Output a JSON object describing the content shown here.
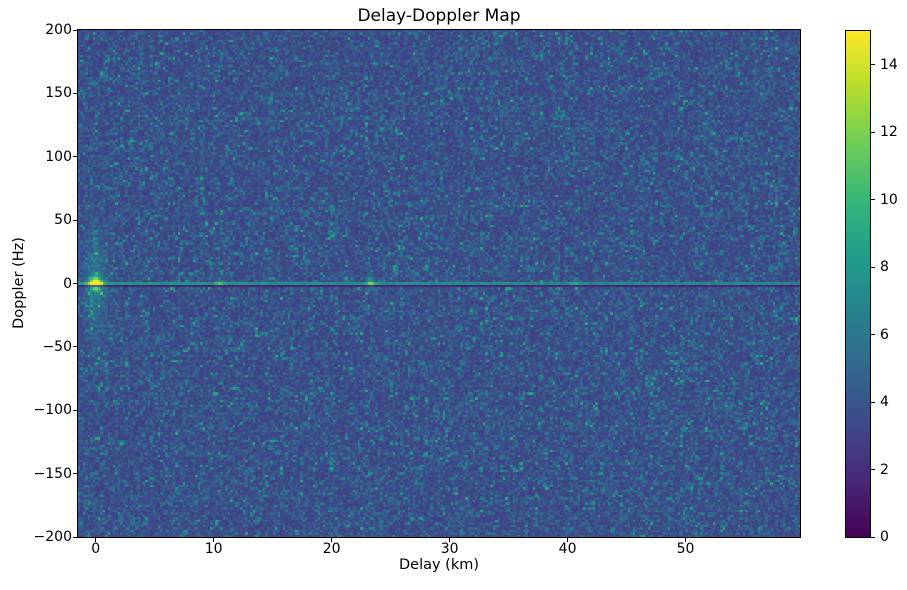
{
  "chart_data": {
    "type": "heatmap",
    "title": "Delay-Doppler Map",
    "xlabel": "Delay (km)",
    "ylabel": "Doppler (Hz)",
    "xlim": [
      -1.5,
      59.7
    ],
    "ylim": [
      -200,
      200
    ],
    "xticks": [
      0,
      10,
      20,
      30,
      40,
      50
    ],
    "xtick_labels": [
      "0",
      "10",
      "20",
      "30",
      "40",
      "50"
    ],
    "yticks": [
      200,
      150,
      100,
      50,
      0,
      -50,
      -100,
      -150,
      -200
    ],
    "ytick_labels": [
      "200",
      "150",
      "100",
      "50",
      "0",
      "−50",
      "−100",
      "−150",
      "−200"
    ],
    "grid_on": false,
    "colormap": "viridis",
    "colormap_stops": [
      "#440154",
      "#482878",
      "#3e4989",
      "#31688e",
      "#26828e",
      "#1f9e89",
      "#35b779",
      "#6ece58",
      "#b5de2b",
      "#fde725"
    ],
    "colorbar": {
      "vmin": 0,
      "vmax": 15,
      "ticks": [
        0,
        2,
        4,
        6,
        8,
        10,
        12,
        14
      ],
      "tick_labels": [
        "0",
        "2",
        "4",
        "6",
        "8",
        "10",
        "12",
        "14"
      ],
      "position": "right"
    },
    "grid_bins": {
      "delay": 289,
      "doppler": 203
    },
    "background_noise": {
      "description": "speckle noise over full map",
      "floor": 2.9,
      "exp_scale": 1.15,
      "clamp": 9.0,
      "mean": 4.05,
      "seed": 1337
    },
    "zero_doppler_ridge": {
      "doppler_hz": 0,
      "value": 7.9,
      "taper_per_km": 0.015,
      "noise": 0.55,
      "dark_line": {
        "offset_rows": 1,
        "value": 1.1,
        "noise": 0.5,
        "peak_bleed": 0.25
      }
    },
    "peaks": [
      {
        "name": "specular-peak",
        "delay_km": 0,
        "doppler_hz": 0,
        "amplitude": 13,
        "sigma_delay_km": 0.35,
        "sigma_doppler_hz": 3.5
      },
      {
        "name": "specular-doppler-glow",
        "delay_km": 0,
        "doppler_hz": 0,
        "amplitude": 2.2,
        "sigma_delay_km": 0.6,
        "sigma_doppler_hz": 28
      },
      {
        "name": "echo-1",
        "delay_km": 10.5,
        "doppler_hz": 0,
        "amplitude": 3.5,
        "sigma_delay_km": 0.25,
        "sigma_doppler_hz": 2.2
      },
      {
        "name": "echo-2",
        "delay_km": 23.3,
        "doppler_hz": 0,
        "amplitude": 4.5,
        "sigma_delay_km": 0.25,
        "sigma_doppler_hz": 3.5
      },
      {
        "name": "echo-3",
        "delay_km": 40.6,
        "doppler_hz": 0,
        "amplitude": 2.5,
        "sigma_delay_km": 0.3,
        "sigma_doppler_hz": 1.8
      }
    ]
  }
}
